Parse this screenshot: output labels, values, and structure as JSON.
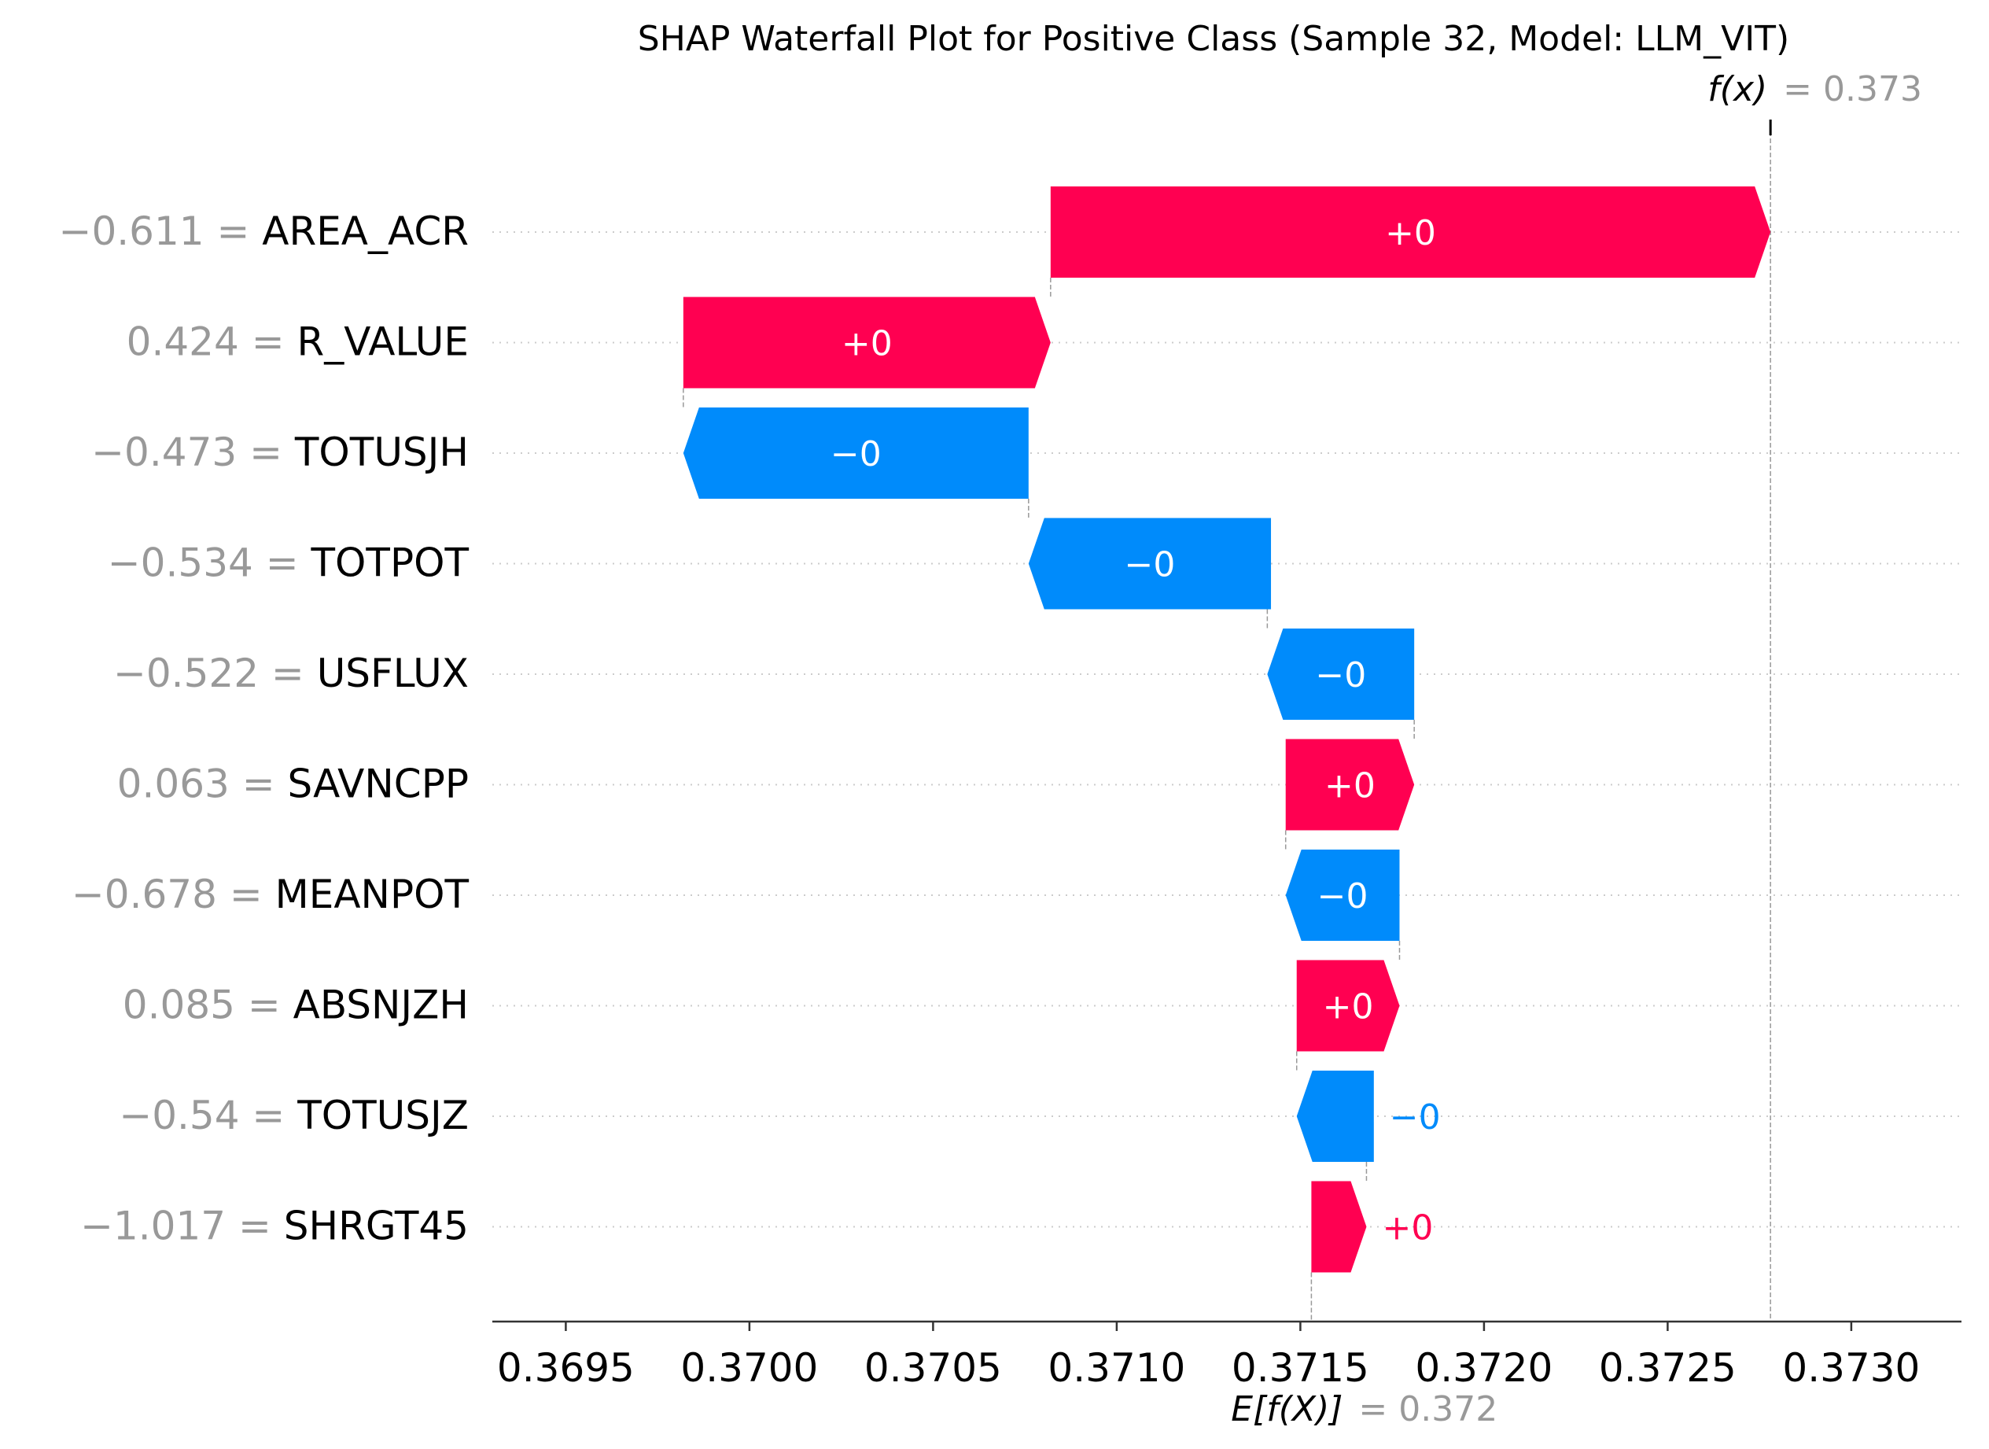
{
  "chart_data": {
    "type": "waterfall",
    "title": "SHAP Waterfall Plot for Positive Class (Sample 32, Model: LLM_VIT)",
    "fx_label": "f(x)",
    "fx_value_text": "= 0.373",
    "ex_label": "E[f(X)]",
    "ex_value_text": "= 0.372",
    "base_value": 0.37153,
    "final_value": 0.37278,
    "xlim": [
      0.3693,
      0.3733
    ],
    "x_ticks": [
      0.3695,
      0.37,
      0.3705,
      0.371,
      0.3715,
      0.372,
      0.3725,
      0.373
    ],
    "x_tick_labels": [
      "0.3695",
      "0.3700",
      "0.3705",
      "0.3710",
      "0.3715",
      "0.3720",
      "0.3725",
      "0.3730"
    ],
    "features": [
      {
        "value_text": "−0.611",
        "name": "AREA_ACR",
        "start": 0.37082,
        "end": 0.37278,
        "label": "+0",
        "sign": "pos"
      },
      {
        "value_text": "0.424",
        "name": "R_VALUE",
        "start": 0.36982,
        "end": 0.37082,
        "label": "+0",
        "sign": "pos"
      },
      {
        "value_text": "−0.473",
        "name": "TOTUSJH",
        "start": 0.37076,
        "end": 0.36982,
        "label": "−0",
        "sign": "neg"
      },
      {
        "value_text": "−0.534",
        "name": "TOTPOT",
        "start": 0.37142,
        "end": 0.37076,
        "label": "−0",
        "sign": "neg"
      },
      {
        "value_text": "−0.522",
        "name": "USFLUX",
        "start": 0.37181,
        "end": 0.37141,
        "label": "−0",
        "sign": "neg"
      },
      {
        "value_text": "0.063",
        "name": "SAVNCPP",
        "start": 0.37146,
        "end": 0.37181,
        "label": "+0",
        "sign": "pos"
      },
      {
        "value_text": "−0.678",
        "name": "MEANPOT",
        "start": 0.37177,
        "end": 0.37146,
        "label": "−0",
        "sign": "neg"
      },
      {
        "value_text": "0.085",
        "name": "ABSNJZH",
        "start": 0.37149,
        "end": 0.37177,
        "label": "+0",
        "sign": "pos"
      },
      {
        "value_text": "−0.54",
        "name": "TOTUSJZ",
        "start": 0.3717,
        "end": 0.37149,
        "label": "−0",
        "sign": "neg"
      },
      {
        "value_text": "−1.017",
        "name": "SHRGT45",
        "start": 0.37153,
        "end": 0.37168,
        "label": "+0",
        "sign": "pos"
      }
    ],
    "colors": {
      "positive": "#ff0051",
      "negative": "#008bfb",
      "feature_value_text": "#999999",
      "feature_name_text": "#000000",
      "grid": "#cccccc",
      "axis": "#333333"
    },
    "grid": true
  }
}
